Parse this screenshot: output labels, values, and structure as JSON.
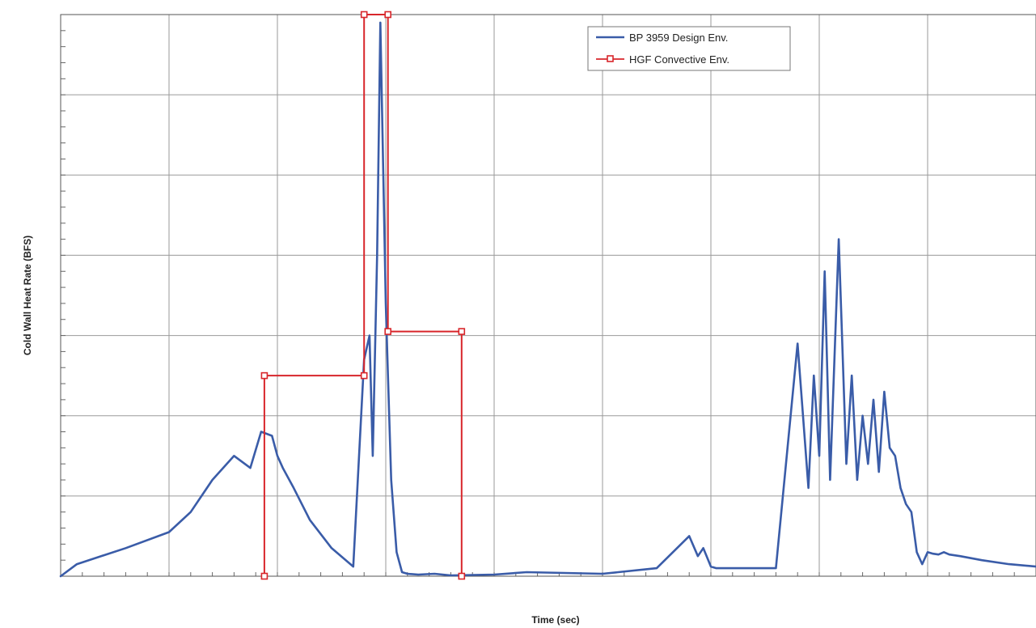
{
  "chart_data": {
    "type": "line",
    "title": "",
    "xlabel": "Time  (sec)",
    "ylabel": "Cold Wall Heat Rate (BFS)",
    "x_tick_labels_visible": false,
    "y_tick_labels_visible": false,
    "xlim": [
      0,
      9
    ],
    "ylim": [
      0,
      7
    ],
    "grid": true,
    "legend": "top-center",
    "series": [
      {
        "name": "BP 3959 Design Env.",
        "color": "#3a5ca8",
        "marker": "none",
        "x": [
          0.0,
          0.15,
          0.6,
          1.0,
          1.2,
          1.4,
          1.6,
          1.75,
          1.85,
          1.95,
          2.0,
          2.05,
          2.15,
          2.3,
          2.5,
          2.7,
          2.8,
          2.85,
          2.88,
          2.92,
          2.95,
          2.97,
          3.0,
          3.02,
          3.05,
          3.1,
          3.15,
          3.2,
          3.3,
          3.45,
          3.6,
          4.0,
          4.3,
          5.0,
          5.5,
          5.8,
          5.88,
          5.93,
          6.0,
          6.05,
          6.1,
          6.2,
          6.6,
          6.8,
          6.9,
          6.95,
          7.0,
          7.05,
          7.1,
          7.18,
          7.25,
          7.3,
          7.35,
          7.4,
          7.45,
          7.5,
          7.55,
          7.6,
          7.65,
          7.7,
          7.75,
          7.8,
          7.85,
          7.9,
          7.95,
          8.0,
          8.05,
          8.1,
          8.15,
          8.2,
          8.3,
          8.5,
          8.75,
          9.0
        ],
        "values": [
          0.0,
          0.15,
          0.35,
          0.55,
          0.8,
          1.2,
          1.5,
          1.35,
          1.8,
          1.75,
          1.5,
          1.35,
          1.1,
          0.7,
          0.35,
          0.12,
          2.7,
          3.0,
          1.5,
          4.0,
          6.9,
          5.5,
          3.4,
          2.5,
          1.2,
          0.3,
          0.05,
          0.03,
          0.02,
          0.03,
          0.01,
          0.02,
          0.05,
          0.03,
          0.1,
          0.5,
          0.25,
          0.35,
          0.12,
          0.1,
          0.1,
          0.1,
          0.1,
          2.9,
          1.1,
          2.5,
          1.5,
          3.8,
          1.2,
          4.2,
          1.4,
          2.5,
          1.2,
          2.0,
          1.4,
          2.2,
          1.3,
          2.3,
          1.6,
          1.5,
          1.1,
          0.9,
          0.8,
          0.3,
          0.15,
          0.3,
          0.28,
          0.27,
          0.3,
          0.27,
          0.25,
          0.2,
          0.15,
          0.12
        ]
      },
      {
        "name": "HGF Convective Env.",
        "color": "#d8262b",
        "marker": "square",
        "x": [
          1.88,
          1.88,
          2.8,
          2.8,
          3.02,
          3.02,
          3.7,
          3.7
        ],
        "values": [
          0.0,
          2.5,
          2.5,
          7.0,
          7.0,
          3.05,
          3.05,
          0.0
        ],
        "marker_points": [
          [
            1.88,
            0.0
          ],
          [
            1.88,
            2.5
          ],
          [
            2.8,
            2.5
          ],
          [
            2.8,
            7.0
          ],
          [
            3.02,
            7.0
          ],
          [
            3.02,
            3.05
          ],
          [
            3.7,
            3.05
          ],
          [
            3.7,
            0.0
          ]
        ]
      }
    ]
  }
}
